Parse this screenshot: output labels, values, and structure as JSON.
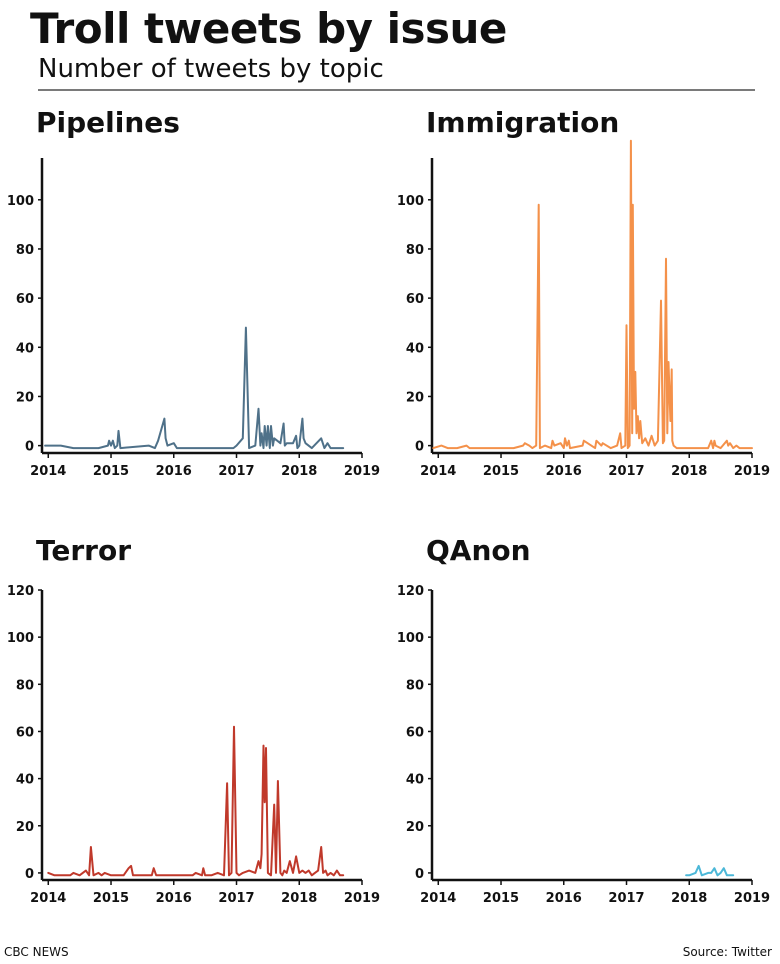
{
  "title": "Troll tweets by issue",
  "subtitle": "Number of tweets by topic",
  "footer": {
    "source_left": "CBC NEWS",
    "source_right": "Source: Twitter"
  },
  "chart_data": [
    {
      "type": "line",
      "title": "Pipelines",
      "color": "#4f7189",
      "xlabel": "",
      "ylabel": "",
      "xlim": [
        2013.9,
        2019
      ],
      "ylim": [
        -3,
        117
      ],
      "x_ticks": [
        2014,
        2015,
        2016,
        2017,
        2018,
        2019
      ],
      "y_ticks": [
        0,
        20,
        40,
        60,
        80,
        100
      ],
      "x": [
        2013.95,
        2014.2,
        2014.4,
        2014.8,
        2014.95,
        2014.97,
        2015.0,
        2015.03,
        2015.06,
        2015.1,
        2015.12,
        2015.15,
        2015.6,
        2015.7,
        2015.75,
        2015.85,
        2015.87,
        2015.9,
        2016.0,
        2016.05,
        2016.5,
        2016.95,
        2017.0,
        2017.1,
        2017.15,
        2017.2,
        2017.3,
        2017.35,
        2017.38,
        2017.4,
        2017.43,
        2017.45,
        2017.48,
        2017.5,
        2017.53,
        2017.55,
        2017.58,
        2017.6,
        2017.7,
        2017.75,
        2017.77,
        2017.8,
        2017.9,
        2017.95,
        2017.97,
        2018.0,
        2018.05,
        2018.07,
        2018.1,
        2018.2,
        2018.35,
        2018.4,
        2018.45,
        2018.5,
        2018.6,
        2018.7
      ],
      "values": [
        0,
        0,
        -1,
        -1,
        0,
        2,
        0,
        2,
        -1,
        0,
        6,
        -1,
        0,
        -1,
        2,
        11,
        3,
        0,
        1,
        -1,
        -1,
        -1,
        0,
        3,
        48,
        -1,
        0,
        15,
        0,
        5,
        -1,
        8,
        0,
        8,
        -1,
        8,
        0,
        3,
        1,
        9,
        0,
        1,
        1,
        4,
        -1,
        0,
        11,
        3,
        1,
        -1,
        3,
        -1,
        1,
        -1,
        -1,
        -1
      ]
    },
    {
      "type": "line",
      "title": "Immigration",
      "color": "#f4914a",
      "xlabel": "",
      "ylabel": "",
      "xlim": [
        2013.9,
        2019
      ],
      "ylim": [
        -3,
        117
      ],
      "x_ticks": [
        2014,
        2015,
        2016,
        2017,
        2018,
        2019
      ],
      "y_ticks": [
        0,
        20,
        40,
        60,
        80,
        100
      ],
      "x": [
        2013.92,
        2014.05,
        2014.15,
        2014.3,
        2014.45,
        2014.5,
        2014.9,
        2015.2,
        2015.35,
        2015.38,
        2015.45,
        2015.5,
        2015.56,
        2015.6,
        2015.62,
        2015.7,
        2015.8,
        2015.82,
        2015.85,
        2015.95,
        2016.0,
        2016.02,
        2016.05,
        2016.08,
        2016.1,
        2016.3,
        2016.32,
        2016.5,
        2016.52,
        2016.6,
        2016.62,
        2016.75,
        2016.85,
        2016.9,
        2016.92,
        2016.98,
        2017.0,
        2017.02,
        2017.05,
        2017.07,
        2017.09,
        2017.1,
        2017.12,
        2017.14,
        2017.16,
        2017.18,
        2017.2,
        2017.22,
        2017.25,
        2017.3,
        2017.35,
        2017.4,
        2017.45,
        2017.5,
        2017.55,
        2017.58,
        2017.6,
        2017.63,
        2017.65,
        2017.67,
        2017.7,
        2017.72,
        2017.73,
        2017.75,
        2017.8,
        2018.0,
        2018.3,
        2018.35,
        2018.38,
        2018.4,
        2018.42,
        2018.5,
        2018.6,
        2018.62,
        2018.65,
        2018.7,
        2018.75,
        2018.8,
        2019.0
      ],
      "values": [
        -1,
        0,
        -1,
        -1,
        0,
        -1,
        -1,
        -1,
        0,
        1,
        0,
        -1,
        0,
        98,
        -1,
        0,
        -1,
        2,
        0,
        1,
        -1,
        3,
        0,
        2,
        -1,
        0,
        2,
        -1,
        2,
        0,
        1,
        -1,
        0,
        5,
        -1,
        0,
        49,
        -1,
        0,
        124,
        5,
        98,
        15,
        30,
        5,
        12,
        3,
        10,
        1,
        3,
        0,
        4,
        0,
        2,
        59,
        1,
        2,
        76,
        5,
        34,
        10,
        31,
        2,
        0,
        -1,
        -1,
        -1,
        2,
        -1,
        2,
        0,
        -1,
        2,
        0,
        1,
        -1,
        0,
        -1,
        -1
      ]
    },
    {
      "type": "line",
      "title": "Terror",
      "color": "#c0392b",
      "xlabel": "",
      "ylabel": "",
      "xlim": [
        2013.9,
        2019
      ],
      "ylim": [
        -3,
        120
      ],
      "x_ticks": [
        2014,
        2015,
        2016,
        2017,
        2018,
        2019
      ],
      "y_ticks": [
        0,
        20,
        40,
        60,
        80,
        100,
        120
      ],
      "x": [
        2014.0,
        2014.1,
        2014.2,
        2014.35,
        2014.4,
        2014.5,
        2014.6,
        2014.65,
        2014.68,
        2014.72,
        2014.8,
        2014.85,
        2014.9,
        2015.0,
        2015.2,
        2015.28,
        2015.32,
        2015.35,
        2015.5,
        2015.65,
        2015.68,
        2015.72,
        2016.0,
        2016.3,
        2016.35,
        2016.45,
        2016.47,
        2016.5,
        2016.6,
        2016.7,
        2016.8,
        2016.85,
        2016.88,
        2016.92,
        2016.96,
        2017.0,
        2017.04,
        2017.1,
        2017.2,
        2017.3,
        2017.35,
        2017.38,
        2017.4,
        2017.43,
        2017.45,
        2017.47,
        2017.5,
        2017.55,
        2017.6,
        2017.63,
        2017.66,
        2017.7,
        2017.73,
        2017.76,
        2017.8,
        2017.85,
        2017.9,
        2017.95,
        2018.0,
        2018.05,
        2018.1,
        2018.15,
        2018.2,
        2018.25,
        2018.3,
        2018.35,
        2018.38,
        2018.42,
        2018.45,
        2018.5,
        2018.55,
        2018.6,
        2018.65,
        2018.7
      ],
      "values": [
        0,
        -1,
        -1,
        -1,
        0,
        -1,
        1,
        -1,
        11,
        -1,
        0,
        -1,
        0,
        -1,
        -1,
        2,
        3,
        -1,
        -1,
        -1,
        2,
        -1,
        -1,
        -1,
        0,
        -1,
        2,
        -1,
        -1,
        0,
        -1,
        38,
        -1,
        0,
        62,
        0,
        -1,
        0,
        1,
        0,
        5,
        2,
        8,
        54,
        30,
        53,
        0,
        -1,
        29,
        0,
        39,
        0,
        -1,
        1,
        0,
        5,
        0,
        7,
        0,
        1,
        0,
        1,
        -1,
        0,
        1,
        11,
        0,
        1,
        -1,
        0,
        -1,
        1,
        -1,
        -1
      ]
    },
    {
      "type": "line",
      "title": "QAnon",
      "color": "#4cb8d8",
      "xlabel": "",
      "ylabel": "",
      "xlim": [
        2013.9,
        2019
      ],
      "ylim": [
        -3,
        120
      ],
      "x_ticks": [
        2014,
        2015,
        2016,
        2017,
        2018,
        2019
      ],
      "y_ticks": [
        0,
        20,
        40,
        60,
        80,
        100,
        120
      ],
      "x": [
        2017.95,
        2018.0,
        2018.1,
        2018.15,
        2018.2,
        2018.3,
        2018.35,
        2018.4,
        2018.45,
        2018.5,
        2018.55,
        2018.6,
        2018.7
      ],
      "values": [
        -1,
        -1,
        0,
        3,
        -1,
        0,
        0,
        2,
        -1,
        0,
        2,
        -1,
        -1
      ]
    }
  ]
}
